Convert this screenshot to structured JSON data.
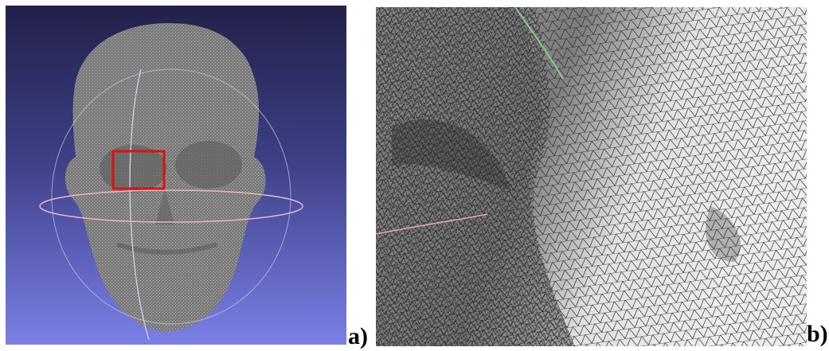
{
  "figure": {
    "panel_a": {
      "label": "a)",
      "viewport_background_top": "#22214a",
      "viewport_background_bottom": "#7a80e6",
      "mesh_color": "#7a7a7a",
      "selection_box_color": "#e01010",
      "trackball_colors": [
        "#c8c8dc",
        "#e6b8c0"
      ]
    },
    "panel_b": {
      "label": "b)",
      "mesh_color": "#2a2a2a",
      "surface_color": "#d6d6d6"
    }
  }
}
